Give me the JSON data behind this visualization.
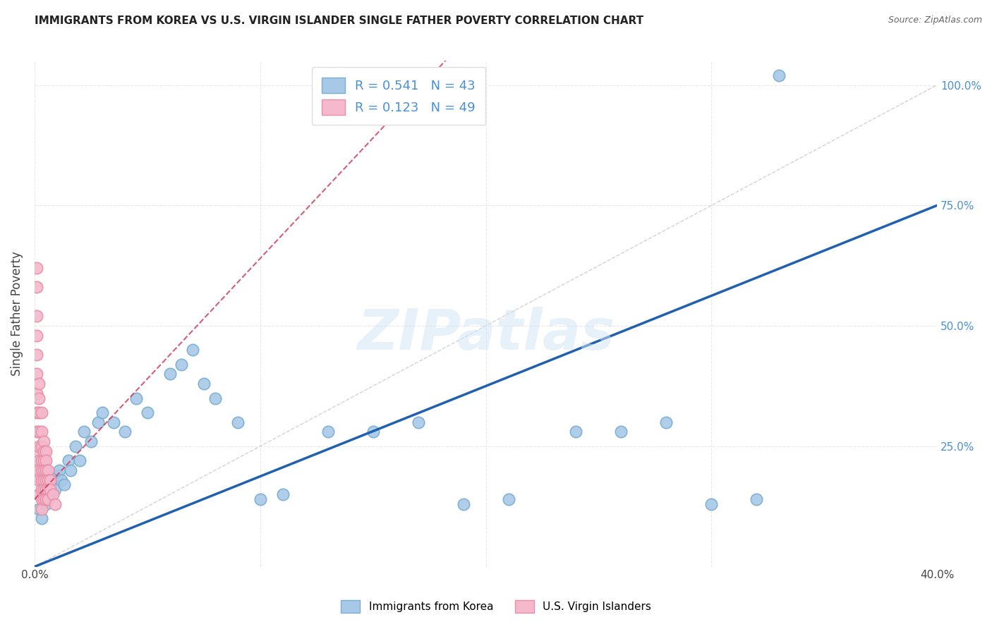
{
  "title": "IMMIGRANTS FROM KOREA VS U.S. VIRGIN ISLANDER SINGLE FATHER POVERTY CORRELATION CHART",
  "source": "Source: ZipAtlas.com",
  "ylabel": "Single Father Poverty",
  "xlim": [
    0.0,
    0.4
  ],
  "ylim": [
    0.0,
    1.05
  ],
  "blue_R": 0.541,
  "blue_N": 43,
  "pink_R": 0.123,
  "pink_N": 49,
  "blue_color": "#a8c8e8",
  "pink_color": "#f5b8cc",
  "blue_edge": "#7aaed0",
  "pink_edge": "#e890a8",
  "line_blue": "#2060b0",
  "line_pink": "#d04060",
  "ref_line_color": "#c8c8c8",
  "watermark_color": "#d0e4f5",
  "grid_color": "#e8e8e8",
  "blue_x": [
    0.002,
    0.003,
    0.004,
    0.005,
    0.006,
    0.007,
    0.008,
    0.009,
    0.01,
    0.011,
    0.012,
    0.013,
    0.015,
    0.016,
    0.018,
    0.02,
    0.022,
    0.025,
    0.028,
    0.03,
    0.035,
    0.04,
    0.045,
    0.05,
    0.06,
    0.065,
    0.07,
    0.075,
    0.08,
    0.09,
    0.1,
    0.11,
    0.13,
    0.15,
    0.17,
    0.19,
    0.21,
    0.24,
    0.26,
    0.28,
    0.3,
    0.32,
    0.33
  ],
  "blue_y": [
    0.12,
    0.1,
    0.15,
    0.13,
    0.17,
    0.15,
    0.18,
    0.16,
    0.19,
    0.2,
    0.18,
    0.17,
    0.22,
    0.2,
    0.25,
    0.22,
    0.28,
    0.26,
    0.3,
    0.32,
    0.3,
    0.28,
    0.35,
    0.32,
    0.4,
    0.42,
    0.45,
    0.38,
    0.35,
    0.3,
    0.14,
    0.15,
    0.28,
    0.28,
    0.3,
    0.13,
    0.14,
    0.28,
    0.28,
    0.3,
    0.13,
    0.14,
    1.02
  ],
  "pink_x": [
    0.001,
    0.001,
    0.001,
    0.001,
    0.001,
    0.001,
    0.001,
    0.001,
    0.001,
    0.001,
    0.002,
    0.002,
    0.002,
    0.002,
    0.002,
    0.002,
    0.002,
    0.002,
    0.002,
    0.003,
    0.003,
    0.003,
    0.003,
    0.003,
    0.003,
    0.003,
    0.003,
    0.003,
    0.004,
    0.004,
    0.004,
    0.004,
    0.004,
    0.004,
    0.004,
    0.005,
    0.005,
    0.005,
    0.005,
    0.005,
    0.005,
    0.006,
    0.006,
    0.006,
    0.006,
    0.007,
    0.007,
    0.008,
    0.009
  ],
  "pink_y": [
    0.62,
    0.58,
    0.52,
    0.48,
    0.44,
    0.4,
    0.36,
    0.32,
    0.28,
    0.24,
    0.38,
    0.35,
    0.32,
    0.28,
    0.25,
    0.22,
    0.2,
    0.18,
    0.15,
    0.32,
    0.28,
    0.25,
    0.22,
    0.2,
    0.18,
    0.16,
    0.14,
    0.12,
    0.26,
    0.24,
    0.22,
    0.2,
    0.18,
    0.16,
    0.14,
    0.24,
    0.22,
    0.2,
    0.18,
    0.16,
    0.14,
    0.2,
    0.18,
    0.16,
    0.14,
    0.18,
    0.16,
    0.15,
    0.13
  ]
}
